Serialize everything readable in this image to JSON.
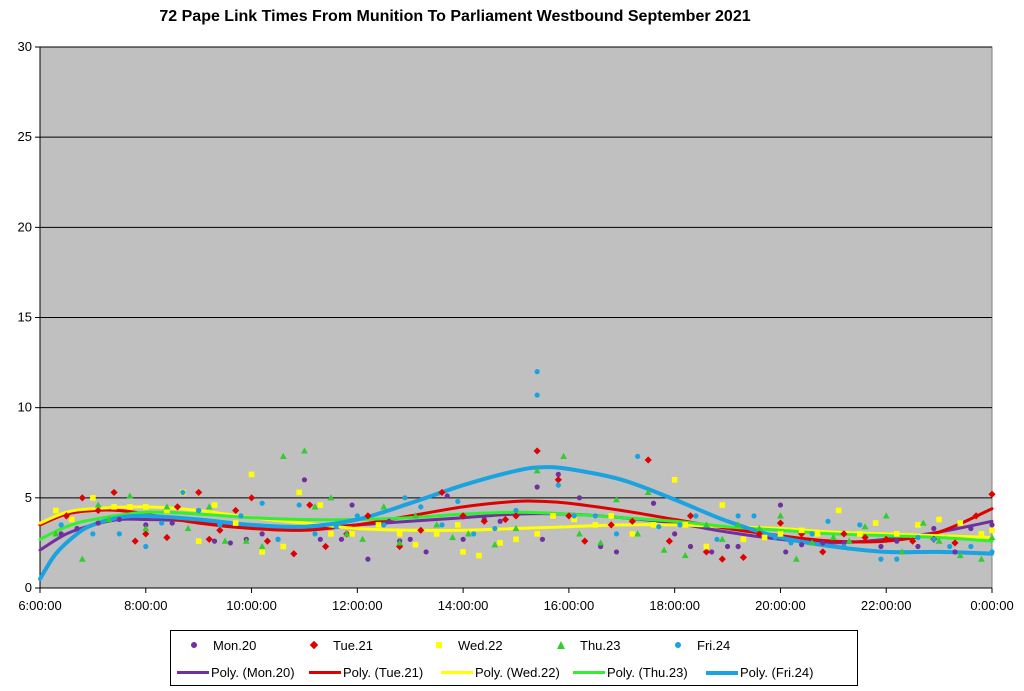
{
  "chart_data": {
    "type": "scatter",
    "title": "72 Pape Link Times From Munition To Parliament Westbound September 2021",
    "xlabel": "",
    "ylabel": "",
    "ylim": [
      0,
      30
    ],
    "yticks": [
      0,
      5,
      10,
      15,
      20,
      25,
      30
    ],
    "xlim_hours": [
      6,
      24
    ],
    "xtick_labels": [
      "6:00:00",
      "8:00:00",
      "10:00:00",
      "12:00:00",
      "14:00:00",
      "16:00:00",
      "18:00:00",
      "20:00:00",
      "22:00:00",
      "0:00:00"
    ],
    "xtick_hours": [
      6,
      8,
      10,
      12,
      14,
      16,
      18,
      20,
      22,
      24
    ],
    "grid": "horizontal",
    "plot_background": "#c0c0c0",
    "legend_position": "bottom",
    "series": [
      {
        "name": "Mon.20",
        "marker": "circle",
        "color": "#7030a0",
        "x_hours": [
          6.4,
          6.7,
          7.1,
          7.5,
          8.0,
          8.5,
          9.0,
          9.3,
          9.6,
          9.9,
          10.2,
          10.5,
          10.9,
          11.0,
          11.3,
          11.7,
          11.9,
          12.2,
          12.6,
          12.8,
          13.0,
          13.3,
          13.7,
          14.0,
          14.4,
          14.7,
          15.0,
          15.4,
          15.5,
          15.8,
          16.2,
          16.6,
          16.9,
          17.2,
          17.6,
          18.0,
          18.3,
          18.7,
          19.0,
          19.2,
          19.6,
          20.0,
          20.1,
          20.4,
          20.8,
          21.2,
          21.5,
          21.9,
          22.2,
          22.6,
          22.9,
          23.3,
          23.6,
          24.0
        ],
        "y": [
          3.0,
          3.3,
          3.6,
          3.8,
          3.5,
          3.6,
          4.3,
          2.6,
          2.5,
          2.7,
          3.0,
          2.7,
          5.3,
          6.0,
          2.7,
          2.7,
          4.6,
          1.6,
          3.7,
          2.6,
          2.7,
          2.0,
          5.1,
          2.7,
          3.8,
          3.7,
          4.0,
          5.6,
          2.7,
          6.3,
          5.0,
          2.3,
          2.0,
          3.0,
          4.7,
          3.0,
          2.3,
          2.0,
          2.3,
          2.3,
          3.0,
          4.6,
          2.0,
          2.4,
          2.5,
          2.5,
          3.0,
          2.3,
          2.6,
          2.3,
          3.3,
          2.0,
          3.3,
          3.5
        ]
      },
      {
        "name": "Tue.21",
        "marker": "diamond",
        "color": "#e00000",
        "x_hours": [
          6.5,
          6.8,
          7.1,
          7.4,
          7.8,
          8.0,
          8.4,
          8.6,
          9.0,
          9.2,
          9.4,
          9.7,
          10.0,
          10.3,
          10.8,
          11.1,
          11.4,
          11.8,
          12.2,
          12.8,
          13.2,
          13.6,
          14.0,
          14.4,
          14.8,
          15.0,
          15.4,
          15.8,
          16.0,
          16.3,
          16.8,
          17.2,
          17.5,
          17.9,
          18.3,
          18.6,
          18.9,
          19.3,
          19.6,
          20.0,
          20.4,
          20.8,
          21.2,
          21.6,
          22.0,
          22.5,
          22.9,
          23.3,
          23.7,
          24.0
        ],
        "y": [
          4.0,
          5.0,
          4.3,
          5.3,
          2.6,
          3.0,
          2.8,
          4.5,
          5.3,
          2.7,
          3.2,
          4.3,
          5.0,
          2.6,
          1.9,
          4.6,
          2.3,
          3.0,
          4.0,
          2.3,
          3.2,
          5.3,
          4.0,
          3.7,
          3.8,
          4.0,
          7.6,
          6.0,
          4.0,
          2.6,
          3.5,
          3.7,
          7.1,
          2.6,
          4.0,
          2.0,
          1.6,
          1.7,
          3.0,
          3.6,
          3.0,
          2.0,
          3.0,
          2.8,
          2.7,
          2.6,
          2.7,
          2.5,
          4.0,
          5.2
        ]
      },
      {
        "name": "Wed.22",
        "marker": "square",
        "color": "#ffff00",
        "x_hours": [
          6.3,
          6.6,
          7.0,
          7.4,
          7.7,
          8.0,
          8.4,
          8.7,
          9.0,
          9.3,
          9.7,
          10.0,
          10.2,
          10.6,
          10.9,
          11.3,
          11.5,
          11.9,
          12.4,
          12.8,
          13.1,
          13.5,
          13.9,
          14.0,
          14.3,
          14.7,
          15.0,
          15.4,
          15.7,
          16.1,
          16.5,
          16.8,
          17.2,
          17.6,
          18.0,
          18.2,
          18.6,
          18.9,
          19.3,
          19.7,
          20.0,
          20.4,
          20.7,
          21.1,
          21.5,
          21.8,
          22.2,
          22.6,
          23.0,
          23.4,
          23.8,
          24.0
        ],
        "y": [
          4.3,
          3.8,
          5.0,
          4.5,
          4.5,
          4.5,
          4.3,
          5.3,
          2.6,
          4.6,
          3.6,
          6.3,
          2.0,
          2.3,
          5.3,
          4.6,
          3.0,
          3.0,
          3.5,
          3.0,
          2.4,
          3.0,
          3.5,
          2.0,
          1.8,
          2.5,
          2.7,
          3.0,
          4.0,
          3.8,
          3.5,
          4.0,
          3.0,
          3.5,
          6.0,
          3.5,
          2.3,
          4.6,
          2.7,
          2.8,
          3.0,
          3.2,
          3.0,
          4.3,
          3.0,
          3.6,
          3.0,
          3.5,
          3.8,
          3.6,
          3.0,
          3.2
        ]
      },
      {
        "name": "Thu.23",
        "marker": "triangle",
        "color": "#33cc33",
        "x_hours": [
          6.3,
          6.8,
          7.1,
          7.3,
          7.7,
          8.0,
          8.4,
          8.8,
          9.2,
          9.5,
          9.9,
          10.2,
          10.6,
          11.0,
          11.2,
          11.5,
          11.8,
          12.1,
          12.5,
          12.8,
          13.1,
          13.5,
          13.8,
          14.1,
          14.6,
          15.0,
          15.4,
          15.9,
          16.2,
          16.6,
          16.9,
          17.3,
          17.5,
          17.8,
          18.2,
          18.6,
          18.9,
          19.2,
          19.6,
          20.0,
          20.3,
          20.6,
          21.0,
          21.3,
          21.6,
          22.0,
          22.3,
          22.7,
          23.0,
          23.4,
          23.8,
          24.0
        ],
        "y": [
          3.0,
          1.6,
          4.6,
          3.8,
          5.1,
          3.3,
          4.5,
          3.3,
          4.5,
          2.6,
          2.6,
          2.3,
          7.3,
          7.6,
          4.5,
          5.0,
          3.0,
          2.7,
          4.5,
          2.5,
          4.0,
          3.5,
          2.8,
          3.0,
          2.4,
          3.3,
          6.5,
          7.3,
          3.0,
          2.5,
          4.9,
          3.0,
          5.3,
          2.1,
          1.8,
          3.5,
          2.7,
          3.5,
          3.3,
          4.0,
          1.6,
          2.5,
          2.8,
          2.6,
          3.4,
          4.0,
          2.0,
          3.6,
          2.6,
          1.8,
          1.6,
          2.8
        ]
      },
      {
        "name": "Fri.24",
        "marker": "circle",
        "color": "#1aa3e0",
        "x_hours": [
          6.4,
          7.0,
          7.5,
          8.0,
          8.3,
          8.7,
          9.0,
          9.4,
          9.8,
          10.2,
          10.5,
          10.9,
          11.2,
          11.6,
          12.0,
          12.5,
          12.9,
          13.2,
          13.6,
          13.9,
          14.2,
          14.6,
          15.0,
          15.4,
          15.4,
          15.8,
          16.1,
          16.5,
          16.9,
          17.3,
          17.7,
          18.1,
          18.4,
          18.8,
          19.2,
          19.5,
          19.9,
          20.2,
          20.6,
          20.9,
          21.2,
          21.5,
          21.9,
          22.2,
          22.6,
          22.9,
          23.2,
          23.6,
          24.0
        ],
        "y": [
          3.5,
          3.0,
          3.0,
          2.3,
          3.6,
          5.3,
          4.3,
          3.5,
          4.0,
          4.7,
          2.7,
          4.6,
          3.0,
          3.4,
          4.0,
          3.5,
          5.0,
          4.5,
          3.5,
          4.8,
          3.0,
          3.3,
          4.3,
          12.0,
          10.7,
          5.7,
          4.0,
          4.0,
          3.0,
          7.3,
          3.4,
          3.5,
          4.0,
          2.7,
          4.0,
          4.0,
          2.8,
          2.5,
          3.0,
          3.7,
          2.3,
          3.5,
          1.6,
          1.6,
          2.8,
          2.7,
          2.3,
          2.3,
          2.0
        ]
      }
    ],
    "trendlines": [
      {
        "name": "Poly. (Mon.20)",
        "color": "#7030a0",
        "width": 3,
        "x_hours": [
          6.0,
          6.5,
          7.0,
          7.5,
          8.0,
          9.0,
          10.0,
          11.0,
          12.0,
          13.0,
          14.0,
          15.0,
          16.0,
          17.0,
          18.0,
          19.0,
          20.0,
          21.0,
          22.0,
          23.0,
          24.0
        ],
        "y": [
          2.1,
          3.0,
          3.5,
          3.8,
          3.8,
          3.7,
          3.4,
          3.3,
          3.5,
          3.7,
          3.9,
          4.1,
          4.1,
          3.9,
          3.6,
          3.1,
          2.7,
          2.5,
          2.7,
          3.1,
          3.7
        ]
      },
      {
        "name": "Poly. (Tue.21)",
        "color": "#e00000",
        "width": 3,
        "x_hours": [
          6.0,
          6.5,
          7.0,
          7.5,
          8.0,
          9.0,
          10.0,
          11.0,
          12.0,
          13.0,
          14.0,
          15.0,
          15.5,
          16.0,
          17.0,
          18.0,
          19.0,
          20.0,
          21.0,
          22.0,
          23.0,
          24.0
        ],
        "y": [
          3.5,
          4.1,
          4.3,
          4.3,
          4.1,
          3.6,
          3.3,
          3.2,
          3.5,
          4.0,
          4.5,
          4.8,
          4.8,
          4.7,
          4.3,
          3.8,
          3.3,
          2.9,
          2.6,
          2.6,
          3.1,
          4.4
        ]
      },
      {
        "name": "Poly. (Wed.22)",
        "color": "#ffff00",
        "width": 3,
        "x_hours": [
          6.0,
          6.5,
          7.0,
          8.0,
          9.0,
          10.0,
          11.0,
          12.0,
          13.0,
          14.0,
          15.0,
          16.0,
          17.0,
          18.0,
          19.0,
          20.0,
          21.0,
          22.0,
          23.0,
          24.0
        ],
        "y": [
          3.6,
          4.2,
          4.4,
          4.5,
          4.3,
          3.9,
          3.6,
          3.3,
          3.2,
          3.2,
          3.3,
          3.4,
          3.5,
          3.5,
          3.4,
          3.3,
          3.1,
          3.0,
          2.9,
          2.8
        ]
      },
      {
        "name": "Poly. (Thu.23)",
        "color": "#33ee33",
        "width": 3,
        "x_hours": [
          6.0,
          6.5,
          7.0,
          8.0,
          9.0,
          10.0,
          11.0,
          12.0,
          13.0,
          14.0,
          15.0,
          16.0,
          17.0,
          18.0,
          19.0,
          20.0,
          21.0,
          22.0,
          23.0,
          24.0
        ],
        "y": [
          2.7,
          3.4,
          3.8,
          4.2,
          4.1,
          3.9,
          3.8,
          3.8,
          3.9,
          4.1,
          4.2,
          4.1,
          3.9,
          3.7,
          3.4,
          3.2,
          3.0,
          2.9,
          2.8,
          2.6
        ]
      },
      {
        "name": "Poly. (Fri.24)",
        "color": "#1aa3e0",
        "width": 4,
        "x_hours": [
          6.0,
          6.3,
          6.7,
          7.0,
          7.5,
          8.0,
          9.0,
          10.0,
          11.0,
          12.0,
          13.0,
          14.0,
          15.0,
          15.5,
          16.0,
          17.0,
          18.0,
          19.0,
          20.0,
          21.0,
          22.0,
          23.0,
          24.0
        ],
        "y": [
          0.5,
          1.9,
          3.0,
          3.5,
          3.9,
          4.0,
          3.8,
          3.5,
          3.4,
          3.8,
          4.7,
          5.7,
          6.5,
          6.7,
          6.6,
          6.0,
          4.9,
          3.7,
          2.8,
          2.3,
          2.0,
          2.0,
          1.9
        ]
      }
    ]
  }
}
